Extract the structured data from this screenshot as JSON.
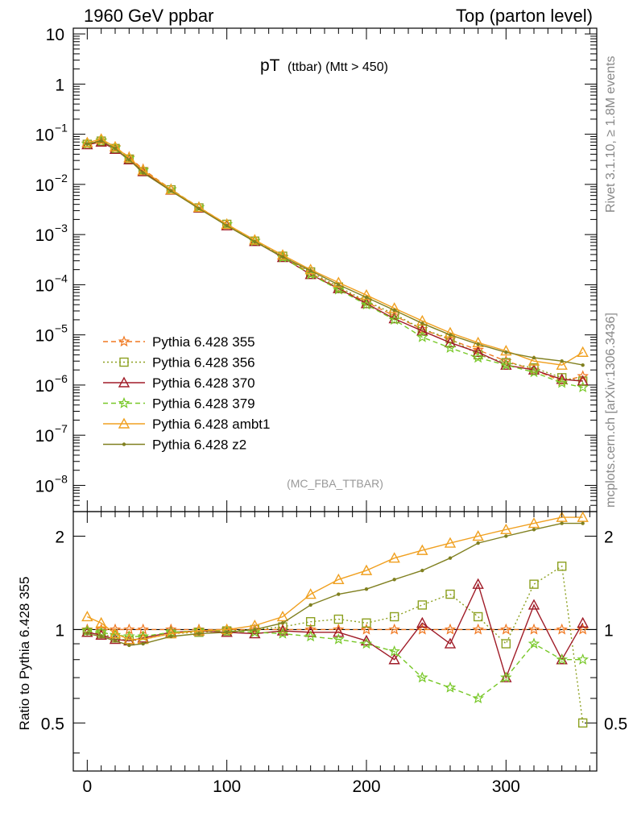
{
  "header": {
    "left": "1960 GeV ppbar",
    "right": "Top (parton level)"
  },
  "side_labels": {
    "rivet": "Rivet 3.1.10, ≥ 1.8M events",
    "mcplots": "mcplots.cern.ch [arXiv:1306.3436]"
  },
  "chart_data": {
    "type": "line",
    "title_main": "pT",
    "title_sub": "(ttbar) (Mtt > 450)",
    "analysis_tag": "(MC_FBA_TTBAR)",
    "xlabel": "",
    "xlim": [
      -10,
      365
    ],
    "x_ticks": [
      0,
      100,
      200,
      300
    ],
    "main_panel": {
      "ylabel": "",
      "scale": "log",
      "ylim": [
        3e-09,
        13
      ],
      "y_tick_labels": [
        "10",
        "1",
        "10^-1",
        "10^-2",
        "10^-3",
        "10^-4",
        "10^-5",
        "10^-6",
        "10^-7",
        "10^-8"
      ]
    },
    "ratio_panel": {
      "ylabel": "Ratio to Pythia 6.428 355",
      "scale": "log",
      "ylim": [
        0.35,
        2.4
      ],
      "y_tick_labels": [
        "2",
        "1",
        "0.5"
      ],
      "reference_line": 1
    },
    "legend": {
      "placement": "left-bottom of main panel"
    },
    "series": [
      {
        "name": "Pythia 6.428 355",
        "color": "#f07820",
        "marker": "star",
        "dash": "dashed",
        "x": [
          0,
          10,
          20,
          30,
          40,
          60,
          80,
          100,
          120,
          140,
          160,
          180,
          200,
          220,
          240,
          260,
          280,
          300,
          320,
          340,
          355
        ],
        "y": [
          0.065,
          0.075,
          0.055,
          0.035,
          0.02,
          0.008,
          0.0035,
          0.0016,
          0.00075,
          0.00036,
          0.00017,
          8.5e-05,
          4.5e-05,
          2.4e-05,
          1.3e-05,
          8e-06,
          5e-06,
          3e-06,
          2e-06,
          1.2e-06,
          1.5e-06
        ],
        "ratio": [
          1,
          1,
          1,
          1,
          1,
          1,
          1,
          1,
          1,
          1,
          1,
          1,
          1,
          1,
          1,
          1,
          1,
          1,
          1,
          1,
          1
        ]
      },
      {
        "name": "Pythia 6.428 356",
        "color": "#8ca020",
        "marker": "open-square",
        "dash": "dotted",
        "x": [
          0,
          10,
          20,
          30,
          40,
          60,
          80,
          100,
          120,
          140,
          160,
          180,
          200,
          220,
          240,
          260,
          280,
          300,
          320,
          340,
          355
        ],
        "y": [
          0.063,
          0.073,
          0.052,
          0.032,
          0.018,
          0.0078,
          0.0034,
          0.0016,
          0.00074,
          0.00037,
          0.00018,
          9e-05,
          4.7e-05,
          2.6e-05,
          1.3e-05,
          8.5e-06,
          4e-06,
          2.8e-06,
          2.2e-06,
          1.4e-06,
          1.2e-06
        ],
        "ratio": [
          0.98,
          0.97,
          0.94,
          0.92,
          0.93,
          0.97,
          0.98,
          0.99,
          1.0,
          1.02,
          1.06,
          1.08,
          1.05,
          1.1,
          1.2,
          1.3,
          1.1,
          0.9,
          1.4,
          1.6,
          0.5
        ]
      },
      {
        "name": "Pythia 6.428 370",
        "color": "#a01c28",
        "marker": "open-triangle",
        "dash": "solid",
        "x": [
          0,
          10,
          20,
          30,
          40,
          60,
          80,
          100,
          120,
          140,
          160,
          180,
          200,
          220,
          240,
          260,
          280,
          300,
          320,
          340,
          355
        ],
        "y": [
          0.062,
          0.07,
          0.05,
          0.031,
          0.018,
          0.0077,
          0.0034,
          0.0015,
          0.00073,
          0.00035,
          0.00016,
          8.4e-05,
          4.2e-05,
          2.1e-05,
          1.2e-05,
          7e-06,
          4.5e-06,
          2.5e-06,
          2e-06,
          1.3e-06,
          1.2e-06
        ],
        "ratio": [
          0.98,
          0.96,
          0.93,
          0.92,
          0.94,
          0.98,
          0.99,
          0.98,
          0.97,
          0.99,
          0.98,
          0.98,
          0.92,
          0.8,
          1.05,
          0.9,
          1.4,
          0.7,
          1.2,
          0.8,
          1.05
        ]
      },
      {
        "name": "Pythia 6.428 379",
        "color": "#78c828",
        "marker": "star",
        "dash": "dashed",
        "x": [
          0,
          10,
          20,
          30,
          40,
          60,
          80,
          100,
          120,
          140,
          160,
          180,
          200,
          220,
          240,
          260,
          280,
          300,
          320,
          340,
          355
        ],
        "y": [
          0.064,
          0.074,
          0.053,
          0.033,
          0.019,
          0.0079,
          0.0035,
          0.0016,
          0.00074,
          0.00035,
          0.00016,
          8e-05,
          4e-05,
          2e-05,
          9e-06,
          5.5e-06,
          3.5e-06,
          2.5e-06,
          1.8e-06,
          1.1e-06,
          9e-07
        ],
        "ratio": [
          0.99,
          0.98,
          0.96,
          0.95,
          0.95,
          0.98,
          0.99,
          0.99,
          0.98,
          0.97,
          0.95,
          0.93,
          0.9,
          0.85,
          0.7,
          0.65,
          0.6,
          0.7,
          0.9,
          0.8,
          0.8
        ]
      },
      {
        "name": "Pythia 6.428 ambt1",
        "color": "#f0a020",
        "marker": "open-triangle",
        "dash": "solid",
        "x": [
          0,
          10,
          20,
          30,
          40,
          60,
          80,
          100,
          120,
          140,
          160,
          180,
          200,
          220,
          240,
          260,
          280,
          300,
          320,
          340,
          355
        ],
        "y": [
          0.068,
          0.08,
          0.056,
          0.034,
          0.019,
          0.0078,
          0.0035,
          0.0016,
          0.00078,
          0.00039,
          0.0002,
          0.00011,
          6.2e-05,
          3.4e-05,
          1.9e-05,
          1.1e-05,
          7e-06,
          4.8e-06,
          3e-06,
          2.5e-06,
          4.5e-06
        ],
        "ratio": [
          1.1,
          1.05,
          0.97,
          0.93,
          0.93,
          0.97,
          0.99,
          1.0,
          1.03,
          1.1,
          1.3,
          1.45,
          1.55,
          1.7,
          1.8,
          1.9,
          2.0,
          2.1,
          2.2,
          2.3,
          2.3
        ]
      },
      {
        "name": "Pythia 6.428 z2",
        "color": "#808020",
        "marker": "dot",
        "dash": "solid",
        "x": [
          0,
          10,
          20,
          30,
          40,
          60,
          80,
          100,
          120,
          140,
          160,
          180,
          200,
          220,
          240,
          260,
          280,
          300,
          320,
          340,
          355
        ],
        "y": [
          0.064,
          0.074,
          0.052,
          0.031,
          0.017,
          0.0074,
          0.0033,
          0.0015,
          0.00072,
          0.00036,
          0.00019,
          0.0001,
          5.6e-05,
          3.1e-05,
          1.7e-05,
          1e-05,
          6.5e-06,
          4.5e-06,
          3.5e-06,
          3e-06,
          2.5e-06
        ],
        "ratio": [
          0.97,
          0.95,
          0.92,
          0.89,
          0.9,
          0.95,
          0.97,
          0.98,
          1.0,
          1.05,
          1.2,
          1.3,
          1.35,
          1.45,
          1.55,
          1.7,
          1.9,
          2.0,
          2.1,
          2.2,
          2.2
        ]
      }
    ]
  }
}
